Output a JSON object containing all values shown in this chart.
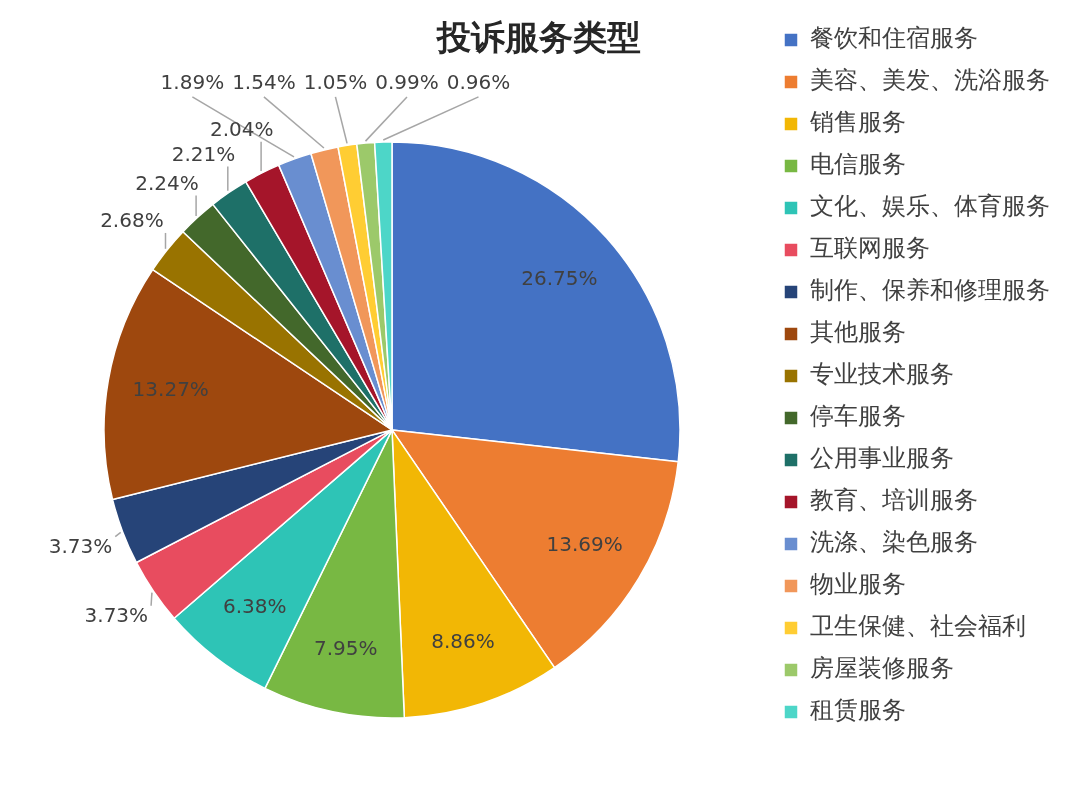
{
  "chart_data": {
    "type": "pie",
    "title": "投诉服务类型",
    "categories": [
      "餐饮和住宿服务",
      "美容、美发、洗浴服务",
      "销售服务",
      "电信服务",
      "文化、娱乐、体育服务",
      "互联网服务",
      "制作、保养和修理服务",
      "其他服务",
      "专业技术服务",
      "停车服务",
      "公用事业服务",
      "教育、培训服务",
      "洗涤、染色服务",
      "物业服务",
      "卫生保健、社会福利",
      "房屋装修服务",
      "租赁服务"
    ],
    "values": [
      26.75,
      13.69,
      8.86,
      7.95,
      6.38,
      3.73,
      3.73,
      13.27,
      2.68,
      2.24,
      2.21,
      2.04,
      1.89,
      1.54,
      1.05,
      0.99,
      0.96
    ],
    "value_labels": [
      "26.75%",
      "13.69%",
      "8.86%",
      "7.95%",
      "6.38%",
      "3.73%",
      "3.73%",
      "13.27%",
      "2.68%",
      "2.24%",
      "2.21%",
      "2.04%",
      "1.89%",
      "1.54%",
      "1.05%",
      "0.99%",
      "0.96%"
    ],
    "colors": [
      "#4472c4",
      "#ed7d31",
      "#f2b705",
      "#78b843",
      "#2ec4b6",
      "#e84c5f",
      "#264478",
      "#9e480e",
      "#997300",
      "#43682b",
      "#1e7068",
      "#a5152a",
      "#698ed0",
      "#f1975a",
      "#ffcd33",
      "#9cc96a",
      "#4dd6c8"
    ],
    "legend": "right"
  }
}
